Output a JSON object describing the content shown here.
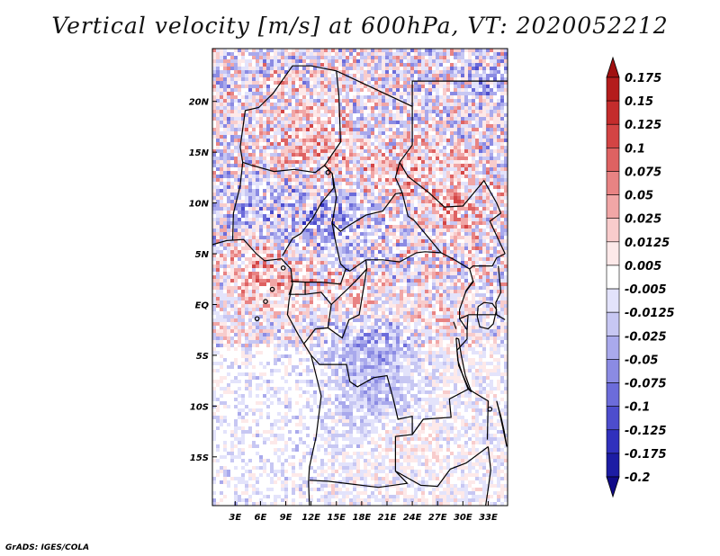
{
  "title": "Vertical velocity [m/s] at 600hPa, VT: 2020052212",
  "footer": "GrADS: IGES/COLA",
  "map": {
    "lat_labels": [
      "20N",
      "15N",
      "10N",
      "5N",
      "EQ",
      "5S",
      "10S",
      "15S"
    ],
    "lat_values": [
      20,
      15,
      10,
      5,
      0,
      -5,
      -10,
      -15
    ],
    "lon_labels": [
      "3E",
      "6E",
      "9E",
      "12E",
      "15E",
      "18E",
      "21E",
      "24E",
      "27E",
      "30E",
      "33E"
    ],
    "lon_values": [
      3,
      6,
      9,
      12,
      15,
      18,
      21,
      24,
      27,
      30,
      33
    ],
    "lon_range": [
      0.3,
      35.3
    ],
    "lat_range": [
      -19.8,
      25.2
    ]
  },
  "colorbar": {
    "labels": [
      "0.175",
      "0.15",
      "0.125",
      "0.1",
      "0.075",
      "0.05",
      "0.025",
      "0.0125",
      "0.005",
      "-0.005",
      "-0.0125",
      "-0.025",
      "-0.05",
      "-0.075",
      "-0.1",
      "-0.125",
      "-0.175",
      "-0.2"
    ],
    "colors": [
      "#a01010",
      "#b41c1c",
      "#c42c2c",
      "#d34444",
      "#de6262",
      "#e88383",
      "#f1a6a6",
      "#f8cccc",
      "#fde9e9",
      "#ffffff",
      "#e3e3fb",
      "#c7c7f3",
      "#a9a9ec",
      "#8b8be3",
      "#6c6cda",
      "#4d4dcd",
      "#3030bd",
      "#1c1ca4",
      "#100a88"
    ]
  }
}
